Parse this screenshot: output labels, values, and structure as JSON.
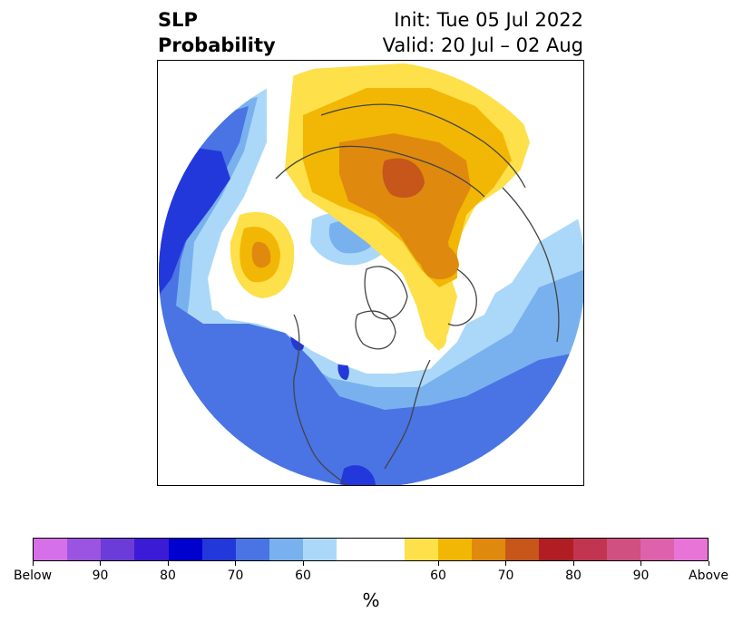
{
  "header": {
    "title_line1": "SLP",
    "title_line2": "Probability",
    "init_text": "Init: Tue 05 Jul 2022",
    "valid_text": "Valid: 20 Jul – 02 Aug"
  },
  "map": {
    "projection": "north-polar-stereographic",
    "coastline_color": "#444444",
    "features": [
      "blue-north-pacific",
      "deep-blue-bering",
      "yellow-orange-alaska-beaufort",
      "orange-siberia",
      "red-orange-central-siberia",
      "orange-kara",
      "yellow-greenland",
      "blue-north-america",
      "blue-north-atlantic",
      "light-blue-arctic-pocket"
    ]
  },
  "colorbar": {
    "colors": [
      "#d670e8",
      "#9b54e0",
      "#6c3cd9",
      "#3b1bd6",
      "#0000cf",
      "#2338da",
      "#4a73e3",
      "#78b1ee",
      "#abd8f8",
      "#ffffff",
      "#ffffff",
      "#fde04a",
      "#f2b705",
      "#df8a0e",
      "#c6561a",
      "#b01e24",
      "#c23550",
      "#cf5081",
      "#dc62ac",
      "#e874d8"
    ],
    "tick_labels": [
      "Below",
      "90",
      "80",
      "70",
      "60",
      "60",
      "70",
      "80",
      "90",
      "Above"
    ],
    "unit_label": "%"
  }
}
